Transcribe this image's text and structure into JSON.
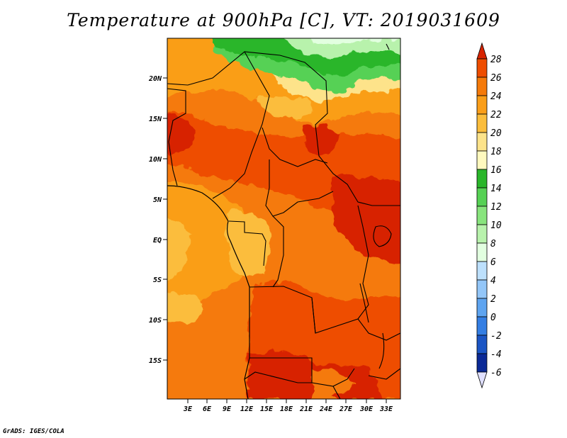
{
  "title": "Temperature at 900hPa [C], VT: 2019031609",
  "credit": "GrADS: IGES/COLA",
  "lat_labels": [
    "20N",
    "15N",
    "10N",
    "5N",
    "EQ",
    "5S",
    "10S",
    "15S"
  ],
  "lon_labels": [
    "3E",
    "6E",
    "9E",
    "12E",
    "15E",
    "18E",
    "21E",
    "24E",
    "27E",
    "30E",
    "33E"
  ],
  "colorbar": {
    "levels": [
      "28",
      "26",
      "24",
      "22",
      "20",
      "18",
      "16",
      "14",
      "12",
      "10",
      "8",
      "6",
      "4",
      "2",
      "0",
      "-2",
      "-4",
      "-6"
    ],
    "colors": [
      "#d72400",
      "#ee4d00",
      "#f57a0a",
      "#fa9e19",
      "#fbbd3c",
      "#fde38a",
      "#fff9be",
      "#2ab62a",
      "#56d154",
      "#88e47d",
      "#b8f2ac",
      "#e2ffe0",
      "#bde0fc",
      "#93c6f8",
      "#5ea4f0",
      "#347ee3",
      "#1b55c4",
      "#0b2996",
      "#05064f"
    ]
  }
}
